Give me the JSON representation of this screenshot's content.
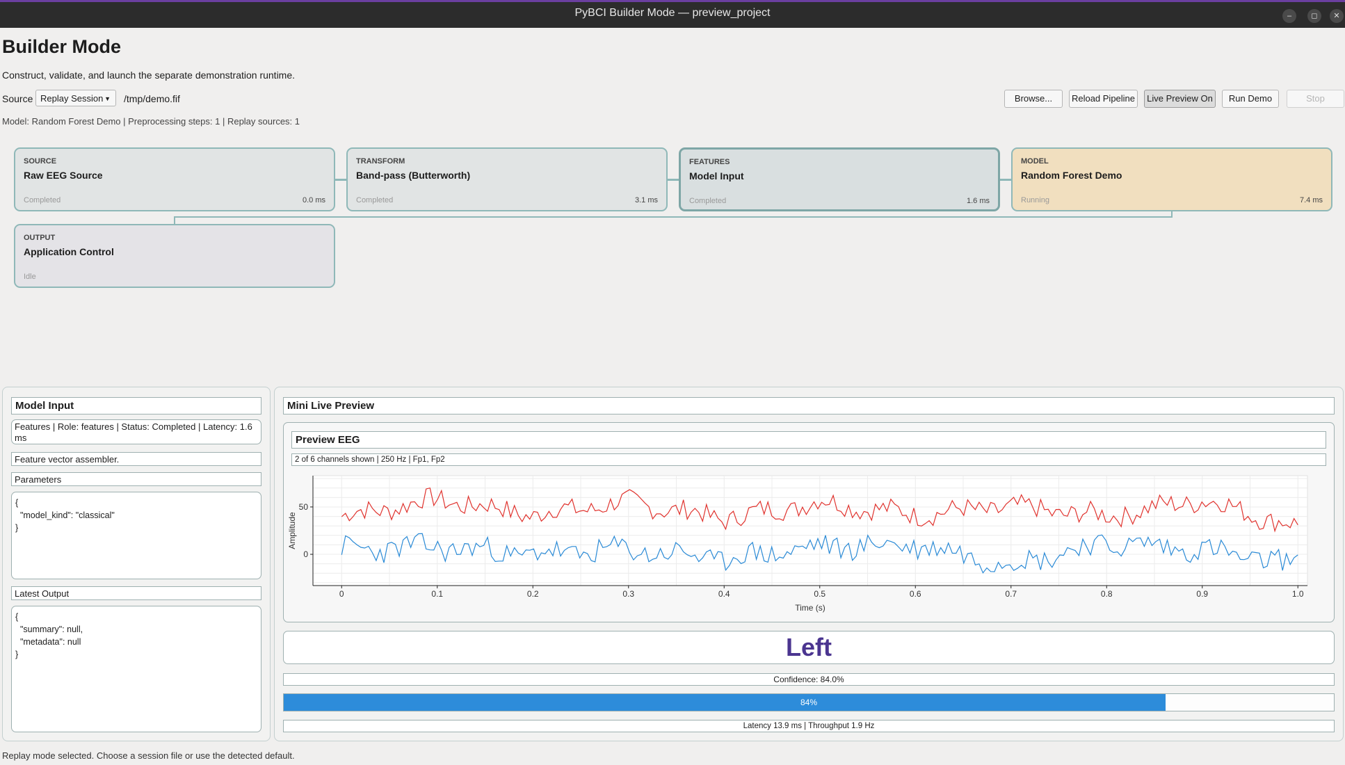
{
  "window": {
    "title": "PyBCI Builder Mode — preview_project"
  },
  "header": {
    "title": "Builder Mode",
    "subtitle": "Construct, validate, and launch the separate demonstration runtime."
  },
  "source_row": {
    "label": "Source",
    "selected": "Replay Session",
    "path": "/tmp/demo.fif"
  },
  "toolbar": {
    "browse": "Browse...",
    "reload": "Reload Pipeline",
    "live_preview": "Live Preview On",
    "run_demo": "Run Demo",
    "stop": "Stop"
  },
  "summary": "Model: Random Forest Demo  |  Preprocessing steps: 1  |  Replay sources: 1",
  "pipeline": [
    {
      "role": "SOURCE",
      "name": "Raw EEG Source",
      "state": "Completed",
      "latency": "0.0 ms"
    },
    {
      "role": "TRANSFORM",
      "name": "Band-pass (Butterworth)",
      "state": "Completed",
      "latency": "3.1 ms"
    },
    {
      "role": "FEATURES",
      "name": "Model Input",
      "state": "Completed",
      "latency": "1.6 ms"
    },
    {
      "role": "MODEL",
      "name": "Random Forest Demo",
      "state": "Running",
      "latency": "7.4 ms"
    },
    {
      "role": "OUTPUT",
      "name": "Application Control",
      "state": "Idle",
      "latency": ""
    }
  ],
  "inspector": {
    "title": "Model Input",
    "meta": "Features  |  Role: features  |  Status: Completed  |  Latency: 1.6 ms",
    "description": "Feature vector assembler.",
    "params_label": "Parameters",
    "params_json": "{\n  \"model_kind\": \"classical\"\n}",
    "output_label": "Latest Output",
    "output_json": "{\n  \"summary\": null,\n  \"metadata\": null\n}"
  },
  "preview": {
    "title": "Mini Live Preview",
    "eeg_title": "Preview EEG",
    "eeg_info": "2 of 6 channels shown  |  250 Hz  |  Fp1, Fp2",
    "prediction": "Left",
    "confidence": "Confidence: 84.0%",
    "progress_value": 84,
    "progress_label": "84%",
    "stats": "Latency 13.9 ms  |  Throughput 1.9 Hz"
  },
  "chart_data": {
    "type": "line",
    "xlabel": "Time (s)",
    "ylabel": "Amplitude",
    "xlim": [
      -0.03,
      1.01
    ],
    "ylim": [
      -33,
      83
    ],
    "xticks": [
      "0",
      "0.1",
      "0.2",
      "0.3",
      "0.4",
      "0.5",
      "0.6",
      "0.7",
      "0.8",
      "0.9",
      "1.0"
    ],
    "yticks": [
      "0",
      "50"
    ],
    "grid": true,
    "series": [
      {
        "color": "#e0332e",
        "offset": 45,
        "amp": 9,
        "seed": 7,
        "x": [
          0.0,
          0.1,
          0.2,
          0.3,
          0.4,
          0.5,
          0.6,
          0.7,
          0.8,
          0.9,
          1.0
        ],
        "y": [
          40,
          58,
          42,
          55,
          38,
          55,
          42,
          50,
          40,
          58,
          28
        ]
      },
      {
        "color": "#2a8ad6",
        "offset": 5,
        "amp": 10,
        "seed": 23,
        "x": [
          0.0,
          0.1,
          0.2,
          0.3,
          0.4,
          0.5,
          0.6,
          0.7,
          0.8,
          0.9,
          1.0
        ],
        "y": [
          5,
          8,
          0,
          5,
          -5,
          8,
          10,
          -10,
          12,
          5,
          -12
        ]
      }
    ]
  },
  "status_bar": "Replay mode selected. Choose a session file or use the detected default.",
  "colors": {
    "node_border": "#8fb8b8",
    "running_bg": "#f1dfbf",
    "prediction": "#4b3590",
    "progress": "#2d8cda"
  }
}
